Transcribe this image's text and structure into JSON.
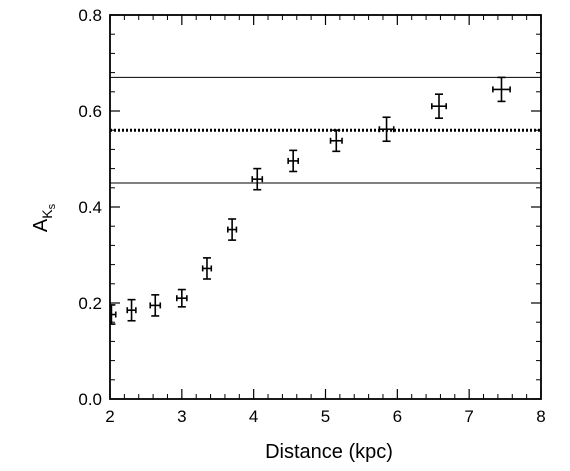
{
  "chart_data": {
    "type": "scatter",
    "title": "",
    "xlabel": "Distance (kpc)",
    "ylabel": {
      "main": "A",
      "sub": "K",
      "subsub": "s"
    },
    "xlim": [
      2,
      8
    ],
    "ylim": [
      0,
      0.8
    ],
    "x_ticks": [
      "2",
      "3",
      "4",
      "5",
      "6",
      "7",
      "8"
    ],
    "y_ticks": [
      "0.0",
      "0.2",
      "0.4",
      "0.6",
      "0.8"
    ],
    "grid": false,
    "reference_lines": [
      {
        "y": 0.67,
        "style": "solid"
      },
      {
        "y": 0.56,
        "style": "dotted"
      },
      {
        "y": 0.45,
        "style": "solid"
      }
    ],
    "points": [
      {
        "x": 2.02,
        "y": 0.176,
        "xerr": 0.06,
        "yerr": 0.02
      },
      {
        "x": 2.3,
        "y": 0.185,
        "xerr": 0.06,
        "yerr": 0.022
      },
      {
        "x": 2.63,
        "y": 0.195,
        "xerr": 0.07,
        "yerr": 0.022
      },
      {
        "x": 3.0,
        "y": 0.21,
        "xerr": 0.07,
        "yerr": 0.018
      },
      {
        "x": 3.35,
        "y": 0.272,
        "xerr": 0.06,
        "yerr": 0.022
      },
      {
        "x": 3.7,
        "y": 0.353,
        "xerr": 0.06,
        "yerr": 0.022
      },
      {
        "x": 4.05,
        "y": 0.458,
        "xerr": 0.07,
        "yerr": 0.022
      },
      {
        "x": 4.55,
        "y": 0.496,
        "xerr": 0.07,
        "yerr": 0.022
      },
      {
        "x": 5.15,
        "y": 0.538,
        "xerr": 0.08,
        "yerr": 0.022
      },
      {
        "x": 5.85,
        "y": 0.562,
        "xerr": 0.1,
        "yerr": 0.025
      },
      {
        "x": 6.58,
        "y": 0.61,
        "xerr": 0.1,
        "yerr": 0.025
      },
      {
        "x": 7.45,
        "y": 0.645,
        "xerr": 0.12,
        "yerr": 0.025
      }
    ]
  }
}
